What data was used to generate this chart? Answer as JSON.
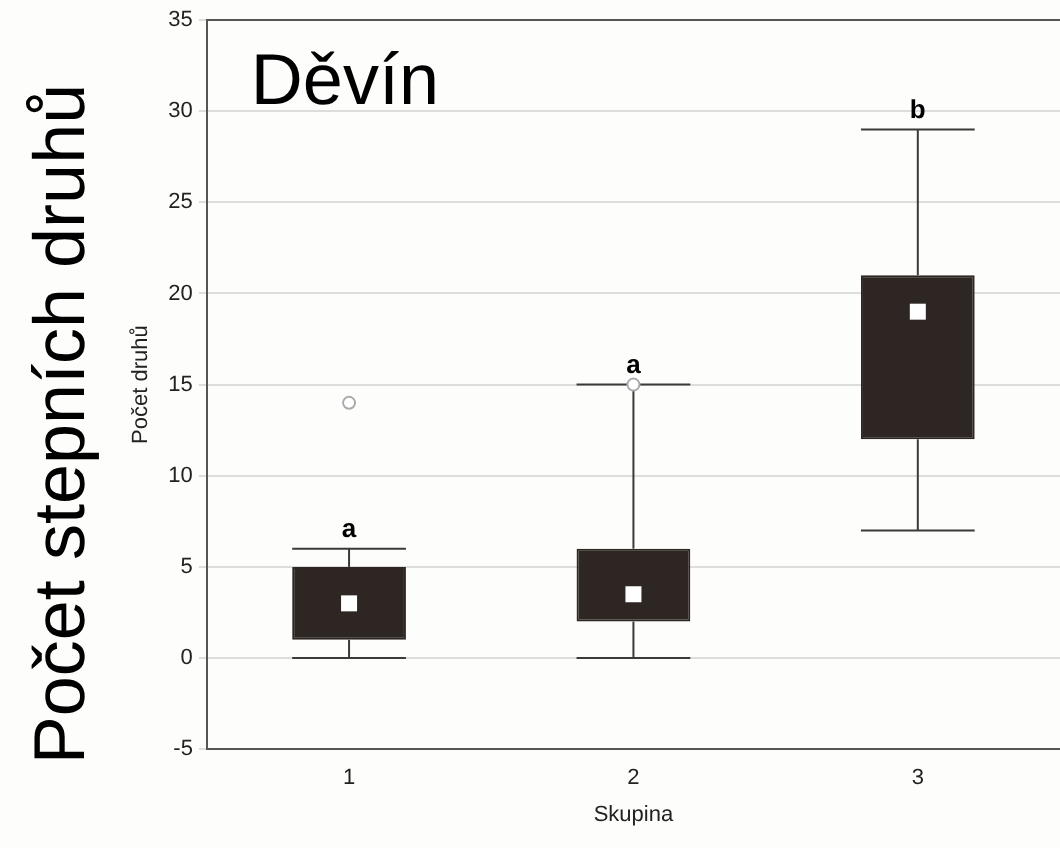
{
  "chart_data": {
    "type": "box",
    "xlabel": "Skupina",
    "ylabel": "Počet druhů",
    "categories": [
      "1",
      "2",
      "3"
    ],
    "color": "#2d2623",
    "boxes": [
      {
        "low": 0,
        "q1": 1,
        "median": 3,
        "q3": 5,
        "high": 6,
        "outliers": [
          14
        ]
      },
      {
        "low": 0,
        "q1": 2,
        "median": 3.5,
        "q3": 6,
        "high": 15,
        "outliers": [
          15
        ]
      },
      {
        "low": 7,
        "q1": 12,
        "median": 19,
        "q3": 21,
        "high": 29
      }
    ],
    "ylim": [
      -5,
      35
    ],
    "yticks": [
      -5,
      0,
      5,
      10,
      15,
      20,
      25,
      30,
      35
    ],
    "grid": "y",
    "annotations": [
      "Děvín",
      "Počet stepních druhů",
      {
        "text": "a",
        "x": "1",
        "y": 6
      },
      {
        "text": "a",
        "x": "2",
        "y": 15
      },
      {
        "text": "b",
        "x": "3",
        "y": 29
      }
    ]
  }
}
